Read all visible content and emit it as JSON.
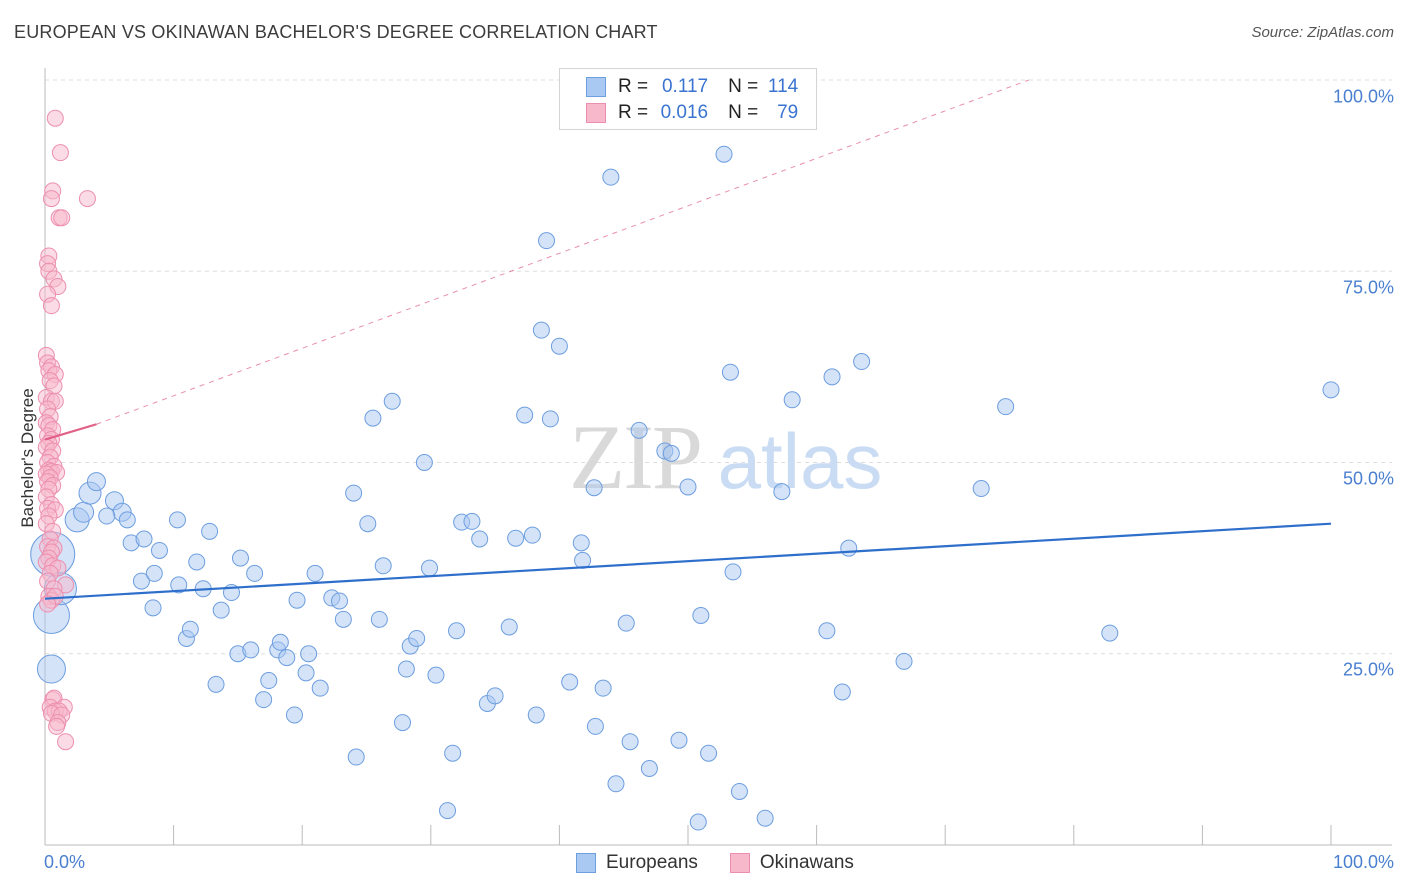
{
  "title": "EUROPEAN VS OKINAWAN BACHELOR'S DEGREE CORRELATION CHART",
  "source": "Source: ZipAtlas.com",
  "watermark": {
    "zip": "ZIP",
    "atlas": "atlas"
  },
  "colors": {
    "blue_fill": "#a9c8f2",
    "blue_stroke": "#6d9edf",
    "blue_line": "#2f6fcc",
    "pink_fill": "#f7b8cc",
    "pink_stroke": "#ec8fae",
    "pink_line": "#e06088",
    "axis_text": "#4a7fd0",
    "grid": "#dddddd"
  },
  "legend_top": {
    "rows": [
      {
        "series": "Europeans",
        "r_label": "R =",
        "r_value": "0.117",
        "n_label": "N =",
        "n_value": "114"
      },
      {
        "series": "Okinawans",
        "r_label": "R =",
        "r_value": "0.016",
        "n_label": "N =",
        "n_value": "79"
      }
    ]
  },
  "legend_bottom": [
    "Europeans",
    "Okinawans"
  ],
  "chart_data": {
    "type": "scatter",
    "title": "EUROPEAN VS OKINAWAN BACHELOR'S DEGREE CORRELATION CHART",
    "xlabel": "",
    "ylabel": "Bachelor's Degree",
    "xlim": [
      0,
      100
    ],
    "ylim": [
      0,
      100
    ],
    "x_tick_labels": [
      "0.0%",
      "100.0%"
    ],
    "y_tick_labels": [
      {
        "value": 100,
        "label": "100.0%"
      },
      {
        "value": 75,
        "label": "75.0%"
      },
      {
        "value": 50,
        "label": "50.0%"
      },
      {
        "value": 25,
        "label": "25.0%"
      }
    ],
    "grid": true,
    "series": [
      {
        "name": "Europeans",
        "points": [
          [
            0.6,
            38,
            22
          ],
          [
            0.5,
            30,
            18
          ],
          [
            0.5,
            23,
            14
          ],
          [
            1.2,
            33.5,
            16
          ],
          [
            2.5,
            42.5,
            12
          ],
          [
            3,
            43.5,
            10
          ],
          [
            3.5,
            46,
            11
          ],
          [
            4,
            47.5,
            9
          ],
          [
            5.4,
            45,
            9
          ],
          [
            6,
            43.5,
            9
          ],
          [
            4.8,
            43,
            8
          ],
          [
            6.4,
            42.5,
            8
          ],
          [
            6.7,
            39.5,
            8
          ],
          [
            7.7,
            40,
            8
          ],
          [
            7.5,
            34.5,
            8
          ],
          [
            8.9,
            38.5,
            8
          ],
          [
            8.5,
            35.5,
            8
          ],
          [
            8.4,
            31,
            8
          ],
          [
            10.3,
            42.5,
            8
          ],
          [
            10.4,
            34,
            8
          ],
          [
            11,
            27,
            8
          ],
          [
            11.3,
            28.2,
            8
          ],
          [
            11.8,
            37,
            8
          ],
          [
            12.3,
            33.5,
            8
          ],
          [
            12.8,
            41,
            8
          ],
          [
            13.3,
            21,
            8
          ],
          [
            13.7,
            30.7,
            8
          ],
          [
            14.5,
            33,
            8
          ],
          [
            15,
            25,
            8
          ],
          [
            15.2,
            37.5,
            8
          ],
          [
            16,
            25.5,
            8
          ],
          [
            16.3,
            35.5,
            8
          ],
          [
            17,
            19,
            8
          ],
          [
            17.4,
            21.5,
            8
          ],
          [
            18.1,
            25.5,
            8
          ],
          [
            18.3,
            26.5,
            8
          ],
          [
            18.8,
            24.5,
            8
          ],
          [
            19.4,
            17,
            8
          ],
          [
            19.6,
            32,
            8
          ],
          [
            20.3,
            22.5,
            8
          ],
          [
            20.5,
            25,
            8
          ],
          [
            21,
            35.5,
            8
          ],
          [
            21.4,
            20.5,
            8
          ],
          [
            22.3,
            32.3,
            8
          ],
          [
            22.9,
            31.9,
            8
          ],
          [
            23.2,
            29.5,
            8
          ],
          [
            24,
            46,
            8
          ],
          [
            24.2,
            11.5,
            8
          ],
          [
            25.1,
            42,
            8
          ],
          [
            25.5,
            55.8,
            8
          ],
          [
            26,
            29.5,
            8
          ],
          [
            26.3,
            36.5,
            8
          ],
          [
            27,
            58,
            8
          ],
          [
            27.8,
            16,
            8
          ],
          [
            28.1,
            23,
            8
          ],
          [
            28.4,
            26,
            8
          ],
          [
            28.9,
            27,
            8
          ],
          [
            29.5,
            50,
            8
          ],
          [
            29.9,
            36.2,
            8
          ],
          [
            30.4,
            22.2,
            8
          ],
          [
            31.3,
            4.5,
            8
          ],
          [
            31.7,
            12,
            8
          ],
          [
            32,
            28,
            8
          ],
          [
            32.4,
            42.2,
            8
          ],
          [
            33.2,
            42.3,
            8
          ],
          [
            33.8,
            40,
            8
          ],
          [
            34.4,
            18.5,
            8
          ],
          [
            35,
            19.5,
            8
          ],
          [
            36.1,
            28.5,
            8
          ],
          [
            36.6,
            40.1,
            8
          ],
          [
            37.3,
            56.2,
            8
          ],
          [
            37.9,
            40.5,
            8
          ],
          [
            38.2,
            17,
            8
          ],
          [
            38.6,
            67.3,
            8
          ],
          [
            39,
            79,
            8
          ],
          [
            39.3,
            55.7,
            8
          ],
          [
            40,
            65.2,
            8
          ],
          [
            40.8,
            21.3,
            8
          ],
          [
            41.7,
            39.5,
            8
          ],
          [
            41.8,
            37.2,
            8
          ],
          [
            42.7,
            46.7,
            8
          ],
          [
            42.8,
            15.5,
            8
          ],
          [
            43.4,
            20.5,
            8
          ],
          [
            44,
            87.3,
            8
          ],
          [
            44.4,
            8,
            8
          ],
          [
            45.2,
            29,
            8
          ],
          [
            45.5,
            13.5,
            8
          ],
          [
            46.2,
            54.2,
            8
          ],
          [
            47,
            10,
            8
          ],
          [
            48.2,
            51.5,
            8
          ],
          [
            48.7,
            51.2,
            8
          ],
          [
            49.3,
            13.7,
            8
          ],
          [
            50,
            46.8,
            8
          ],
          [
            50.8,
            3,
            8
          ],
          [
            51,
            30,
            8
          ],
          [
            51.6,
            12,
            8
          ],
          [
            52.8,
            90.3,
            8
          ],
          [
            53.3,
            61.8,
            8
          ],
          [
            53.5,
            35.7,
            8
          ],
          [
            54,
            7,
            8
          ],
          [
            56,
            3.5,
            8
          ],
          [
            57.3,
            46.2,
            8
          ],
          [
            58.1,
            58.2,
            8
          ],
          [
            60.8,
            28,
            8
          ],
          [
            61.2,
            61.2,
            8
          ],
          [
            62,
            20,
            8
          ],
          [
            62.5,
            38.8,
            8
          ],
          [
            63.5,
            63.2,
            8
          ],
          [
            66.8,
            24,
            8
          ],
          [
            72.8,
            46.6,
            8
          ],
          [
            74.7,
            57.3,
            8
          ],
          [
            82.8,
            27.7,
            8
          ],
          [
            100,
            59.5,
            8
          ],
          [
            51.3,
            24.5,
            0
          ]
        ],
        "trend": {
          "x0": 0,
          "y0": 32.2,
          "x1": 100,
          "y1": 42
        }
      },
      {
        "name": "Okinawans",
        "points": [
          [
            0.8,
            95,
            8
          ],
          [
            1.2,
            90.5,
            8
          ],
          [
            0.6,
            85.5,
            8
          ],
          [
            0.5,
            84.5,
            8
          ],
          [
            1.1,
            82,
            8
          ],
          [
            1.3,
            82,
            8
          ],
          [
            3.3,
            84.5,
            8
          ],
          [
            0.3,
            77,
            8
          ],
          [
            0.2,
            76,
            8
          ],
          [
            0.3,
            75,
            8
          ],
          [
            0.7,
            74,
            8
          ],
          [
            1,
            73,
            8
          ],
          [
            0.2,
            72,
            8
          ],
          [
            0.5,
            70.5,
            8
          ],
          [
            0.1,
            64,
            8
          ],
          [
            0.2,
            63,
            8
          ],
          [
            0.5,
            62.5,
            8
          ],
          [
            0.3,
            62,
            8
          ],
          [
            0.8,
            61.5,
            8
          ],
          [
            0.4,
            60.7,
            8
          ],
          [
            0.7,
            60,
            8
          ],
          [
            0.1,
            58.5,
            8
          ],
          [
            0.5,
            58,
            8
          ],
          [
            0.8,
            58,
            8
          ],
          [
            0.2,
            57,
            8
          ],
          [
            0.4,
            56,
            8
          ],
          [
            0.1,
            55.2,
            8
          ],
          [
            0.3,
            54.8,
            8
          ],
          [
            0.6,
            54.3,
            8
          ],
          [
            0.2,
            53.5,
            8
          ],
          [
            0.5,
            53,
            8
          ],
          [
            0.3,
            52.5,
            8
          ],
          [
            0.1,
            52,
            8
          ],
          [
            0.6,
            51.5,
            8
          ],
          [
            0.4,
            50.7,
            8
          ],
          [
            0.2,
            50,
            8
          ],
          [
            0.7,
            49.5,
            8
          ],
          [
            0.3,
            49,
            8
          ],
          [
            0.5,
            48.8,
            8
          ],
          [
            0.9,
            48.7,
            8
          ],
          [
            0.1,
            48.5,
            8
          ],
          [
            0.4,
            48,
            8
          ],
          [
            0.2,
            47.5,
            8
          ],
          [
            0.6,
            47,
            8
          ],
          [
            0.3,
            46.5,
            8
          ],
          [
            0.1,
            45.5,
            8
          ],
          [
            0.5,
            44.5,
            8
          ],
          [
            0.2,
            44,
            8
          ],
          [
            0.8,
            43.8,
            8
          ],
          [
            0.3,
            43,
            8
          ],
          [
            0.1,
            42,
            8
          ],
          [
            0.6,
            41,
            8
          ],
          [
            0.4,
            40,
            8
          ],
          [
            0.2,
            39,
            8
          ],
          [
            0.7,
            38.8,
            8
          ],
          [
            0.5,
            38.3,
            8
          ],
          [
            0.3,
            37.5,
            8
          ],
          [
            0.1,
            37,
            8
          ],
          [
            0.6,
            36.5,
            8
          ],
          [
            1,
            36.2,
            8
          ],
          [
            0.4,
            35.5,
            8
          ],
          [
            0.2,
            34.5,
            8
          ],
          [
            1.6,
            34,
            8
          ],
          [
            0.7,
            33.5,
            8
          ],
          [
            0.3,
            32.5,
            8
          ],
          [
            0.5,
            32,
            8
          ],
          [
            0.8,
            32.5,
            8
          ],
          [
            0.2,
            31.5,
            8
          ],
          [
            0.6,
            19,
            8
          ],
          [
            0.7,
            19.2,
            8
          ],
          [
            0.4,
            18,
            8
          ],
          [
            1.5,
            18,
            8
          ],
          [
            0.8,
            17.5,
            8
          ],
          [
            1.1,
            17.5,
            8
          ],
          [
            0.5,
            17.2,
            8
          ],
          [
            1.3,
            17,
            8
          ],
          [
            1,
            16,
            8
          ],
          [
            0.9,
            15.5,
            8
          ],
          [
            1.6,
            13.5,
            8
          ]
        ],
        "trend": {
          "x0": 0,
          "y0": 53,
          "x1": 4,
          "y1": 55
        },
        "trend_extended": {
          "x0": 4,
          "y0": 55,
          "x1": 76.5,
          "y1": 100
        }
      }
    ]
  }
}
